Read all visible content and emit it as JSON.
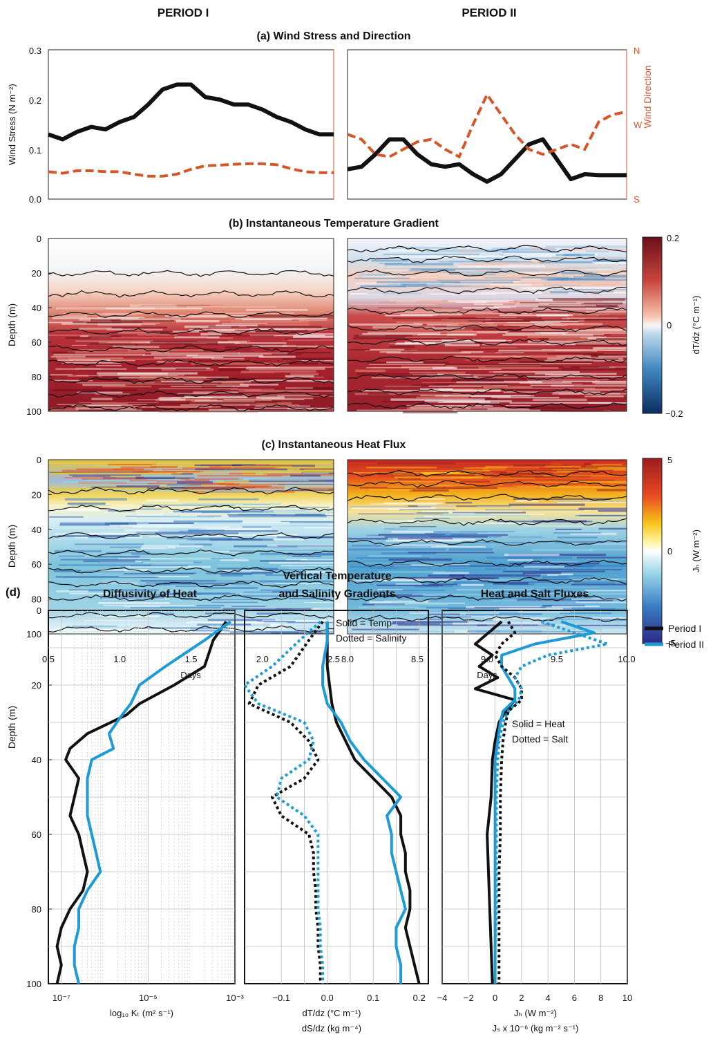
{
  "headers": {
    "period1": "PERIOD I",
    "period2": "PERIOD II"
  },
  "panel_a": {
    "title": "(a) Wind Stress and Direction",
    "ylabel": "Wind Stress (N m⁻²)",
    "ylabel_right": "Wind Direction",
    "yticks": [
      "0.3",
      "0.2",
      "0.1",
      "0.0"
    ],
    "dir_ticks": [
      "N",
      "W",
      "S"
    ],
    "colors": {
      "stress": "#111111",
      "direction": "#d4572a"
    }
  },
  "panel_b": {
    "title": "(b) Instantaneous Temperature Gradient",
    "ylabel": "Depth (m)",
    "yticks": [
      "0",
      "20",
      "40",
      "60",
      "80",
      "100"
    ],
    "cbar_label": "dT/dz (°C m⁻¹)",
    "cbar_ticks": [
      "0.2",
      "0",
      "−0.2"
    ]
  },
  "panel_c": {
    "title": "(c) Instantaneous Heat Flux",
    "ylabel": "Depth (m)",
    "yticks": [
      "0",
      "20",
      "40",
      "60",
      "80",
      "100"
    ],
    "cbar_label": "Jₕ (W m⁻²)",
    "cbar_ticks": [
      "5",
      "0",
      "−5"
    ],
    "xticks_p1": [
      "0.5",
      "1.0",
      "1.5",
      "2.0",
      "2.5"
    ],
    "xticks_p2": [
      "8.0",
      "8.5",
      "9.0",
      "9.5",
      "10.0"
    ],
    "xlabel": "Days"
  },
  "panel_d": {
    "label": "(d)",
    "ylabel": "Depth (m)",
    "yticks": [
      "0",
      "20",
      "40",
      "60",
      "80",
      "100"
    ],
    "sub1": {
      "title": "Diffusivity of Heat",
      "xticks": [
        "10⁻⁷",
        "10⁻⁵",
        "10⁻³"
      ],
      "xlabel": "log₁₀ Kₜ (m² s⁻¹)"
    },
    "sub2": {
      "title1": "Vertical Temperature",
      "title2": "and Salinity Gradients",
      "xticks": [
        "−0.1",
        "0.0",
        "0.1",
        "0.2"
      ],
      "xlabel1": "dT/dz (°C m⁻¹)",
      "xlabel2": "dS/dz (kg m⁻⁴)",
      "note1": "Solid = Temp",
      "note2": "Dotted = Salinity"
    },
    "sub3": {
      "title": "Heat and Salt Fluxes",
      "xticks": [
        "−4",
        "−2",
        "0",
        "2",
        "4",
        "6",
        "8",
        "10"
      ],
      "xlabel1": "Jₕ (W m⁻²)",
      "xlabel2": "Jₛ x 10⁻⁶ (kg m⁻² s⁻¹)",
      "note1": "Solid = Heat",
      "note2": "Dotted = Salt"
    },
    "legend": [
      "Period I",
      "Period II"
    ],
    "colors": {
      "period1": "#111111",
      "period2": "#1e9ad6"
    }
  },
  "chart_data": [
    {
      "type": "line",
      "panel": "a-period1",
      "x": [
        0.5,
        0.6,
        0.7,
        0.8,
        0.9,
        1.0,
        1.1,
        1.2,
        1.3,
        1.4,
        1.5,
        1.6,
        1.7,
        1.8,
        1.9,
        2.0,
        2.1,
        2.2,
        2.3,
        2.4,
        2.5
      ],
      "series": [
        {
          "values": [
            0.13,
            0.12,
            0.135,
            0.145,
            0.14,
            0.155,
            0.165,
            0.19,
            0.22,
            0.23,
            0.23,
            0.205,
            0.2,
            0.19,
            0.19,
            0.18,
            0.165,
            0.155,
            0.14,
            0.13,
            0.13
          ]
        },
        {
          "values": [
            0.055,
            0.052,
            0.057,
            0.057,
            0.055,
            0.055,
            0.05,
            0.046,
            0.046,
            0.05,
            0.06,
            0.067,
            0.068,
            0.07,
            0.071,
            0.071,
            0.069,
            0.061,
            0.055,
            0.053,
            0.053
          ]
        }
      ],
      "ylim": [
        0,
        0.3
      ]
    },
    {
      "type": "line",
      "panel": "a-period2",
      "x": [
        8.0,
        8.1,
        8.2,
        8.3,
        8.4,
        8.5,
        8.6,
        8.7,
        8.8,
        8.9,
        9.0,
        9.1,
        9.2,
        9.3,
        9.4,
        9.5,
        9.6,
        9.7,
        9.8,
        9.9,
        10.0
      ],
      "series": [
        {
          "values": [
            0.06,
            0.065,
            0.09,
            0.12,
            0.12,
            0.09,
            0.07,
            0.065,
            0.07,
            0.05,
            0.035,
            0.05,
            0.08,
            0.11,
            0.12,
            0.08,
            0.04,
            0.05,
            0.048,
            0.048,
            0.048
          ]
        },
        {
          "values": [
            0.13,
            0.12,
            0.09,
            0.085,
            0.1,
            0.115,
            0.12,
            0.1,
            0.085,
            0.15,
            0.21,
            0.17,
            0.13,
            0.1,
            0.09,
            0.1,
            0.11,
            0.1,
            0.155,
            0.17,
            0.175
          ]
        }
      ],
      "ylim": [
        0,
        0.3
      ]
    },
    {
      "type": "line",
      "panel": "d-diffusivity",
      "y_depth": [
        3,
        8,
        15,
        20,
        25,
        28,
        33,
        37,
        40,
        45,
        50,
        55,
        60,
        65,
        70,
        75,
        80,
        85,
        90,
        95,
        100
      ],
      "series": [
        {
          "name": "Period I",
          "log10_values": [
            -3.2,
            -3.5,
            -3.7,
            -4.4,
            -5.2,
            -5.5,
            -6.4,
            -6.8,
            -6.9,
            -6.6,
            -6.7,
            -6.8,
            -6.6,
            -6.5,
            -6.4,
            -6.5,
            -6.8,
            -7.0,
            -7.1,
            -7.0,
            -7.1
          ]
        },
        {
          "name": "Period II",
          "log10_values": [
            -3.1,
            -3.7,
            -4.6,
            -5.2,
            -5.4,
            -5.6,
            -5.9,
            -5.8,
            -6.3,
            -6.4,
            -6.4,
            -6.4,
            -6.3,
            -6.2,
            -6.1,
            -6.4,
            -6.6,
            -6.6,
            -6.7,
            -6.7,
            -6.6
          ]
        }
      ],
      "xlim": [
        -7.3,
        -3.0
      ],
      "ylim": [
        100,
        0
      ]
    },
    {
      "type": "line",
      "panel": "d-gradients",
      "y_depth": [
        3,
        8,
        15,
        20,
        25,
        30,
        35,
        40,
        45,
        50,
        55,
        60,
        65,
        70,
        75,
        80,
        85,
        90,
        95,
        100
      ],
      "series": [
        {
          "name": "Period I temp",
          "values": [
            0.0,
            0.0,
            0.0,
            0.005,
            0.01,
            0.02,
            0.04,
            0.06,
            0.1,
            0.14,
            0.16,
            0.16,
            0.17,
            0.17,
            0.18,
            0.18,
            0.17,
            0.18,
            0.19,
            0.2
          ]
        },
        {
          "name": "Period II temp",
          "values": [
            0.0,
            0.0,
            -0.01,
            -0.01,
            0.0,
            0.03,
            0.05,
            0.08,
            0.12,
            0.16,
            0.13,
            0.14,
            0.14,
            0.15,
            0.16,
            0.17,
            0.15,
            0.15,
            0.16,
            0.16
          ]
        },
        {
          "name": "Period I salinity",
          "values": [
            -0.01,
            -0.04,
            -0.08,
            -0.15,
            -0.17,
            -0.08,
            -0.04,
            -0.02,
            -0.05,
            -0.12,
            -0.1,
            -0.04,
            -0.03,
            -0.03,
            -0.025,
            -0.025,
            -0.02,
            -0.02,
            -0.015,
            -0.015
          ]
        },
        {
          "name": "Period II salinity",
          "values": [
            -0.015,
            -0.06,
            -0.12,
            -0.18,
            -0.15,
            -0.05,
            -0.03,
            -0.04,
            -0.1,
            -0.11,
            -0.05,
            -0.02,
            -0.02,
            -0.02,
            -0.02,
            -0.02,
            -0.015,
            -0.015,
            -0.01,
            -0.01
          ]
        }
      ],
      "xlim": [
        -0.18,
        0.22
      ],
      "ylim": [
        100,
        0
      ]
    },
    {
      "type": "line",
      "panel": "d-fluxes",
      "y_depth": [
        3,
        6,
        9,
        12,
        15,
        18,
        21,
        24,
        27,
        30,
        35,
        40,
        50,
        60,
        70,
        80,
        90,
        100
      ],
      "series": [
        {
          "name": "Period I heat",
          "values": [
            0.5,
            -0.5,
            -1.5,
            -0.2,
            -1.2,
            0.2,
            -1.5,
            1.5,
            0.8,
            0.3,
            0.0,
            -0.2,
            -0.3,
            -0.6,
            -0.5,
            -0.4,
            -0.3,
            -0.2
          ]
        },
        {
          "name": "Period II heat",
          "values": [
            5.0,
            7.5,
            3.0,
            0.5,
            0.5,
            1.0,
            1.5,
            1.5,
            0.6,
            0.4,
            0.2,
            0.0,
            0.0,
            0.0,
            0.0,
            0.0,
            0.0,
            0.0
          ]
        },
        {
          "name": "Period I salt",
          "values": [
            1.0,
            1.5,
            0.5,
            0.0,
            0.5,
            1.5,
            2.0,
            2.0,
            1.0,
            0.8,
            0.6,
            0.5,
            0.4,
            0.4,
            0.3,
            0.3,
            0.3,
            0.3
          ]
        },
        {
          "name": "Period II salt",
          "values": [
            3.5,
            6.0,
            8.5,
            4.0,
            2.0,
            1.5,
            2.0,
            1.8,
            1.0,
            0.6,
            0.3,
            0.2,
            0.1,
            0.1,
            0.1,
            0.1,
            0.0,
            0.0
          ]
        }
      ],
      "xlim": [
        -4,
        10
      ],
      "ylim": [
        100,
        0
      ]
    }
  ]
}
